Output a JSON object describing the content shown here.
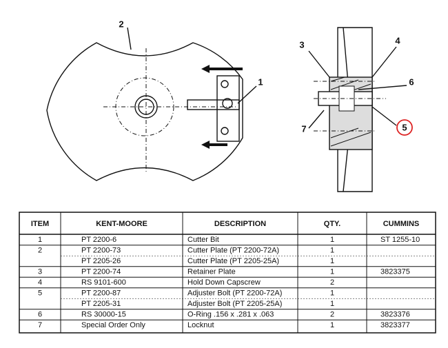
{
  "callouts": [
    "2",
    "1",
    "3",
    "4",
    "6",
    "5",
    "7"
  ],
  "table": {
    "header": [
      "ITEM",
      "KENT-MOORE",
      "DESCRIPTION",
      "QTY.",
      "CUMMINS"
    ],
    "rows": [
      {
        "item": "1",
        "kent_moore": "PT 2200-6",
        "description": "Cutter Bit",
        "qty": "1",
        "cummins": "ST 1255-10"
      },
      {
        "item": "2",
        "kent_moore": "PT 2200-73",
        "description": "Cutter Plate (PT 2200-72A)",
        "qty": "1"
      },
      {
        "kent_moore": "PT 2205-26",
        "description": "Cutter Plate (PT 2205-25A)",
        "qty": "1"
      },
      {
        "item": "3",
        "kent_moore": "PT 2200-74",
        "description": "Retainer Plate",
        "qty": "1",
        "cummins": "3823375"
      },
      {
        "item": "4",
        "kent_moore": "RS 9101-600",
        "description": "Hold Down Capscrew",
        "qty": "2"
      },
      {
        "item": "5",
        "kent_moore": "PT 2200-87",
        "description": "Adjuster Bolt (PT 2200-72A)",
        "qty": "1"
      },
      {
        "kent_moore": "PT 2205-31",
        "description": "Adjuster Bolt (PT 2205-25A)",
        "qty": "1"
      },
      {
        "item": "6",
        "kent_moore": "RS 30000-15",
        "description": "O-Ring .156 x .281 x .063",
        "qty": "2",
        "cummins": "3823376"
      },
      {
        "item": "7",
        "kent_moore": "Special Order Only",
        "description": "Locknut",
        "qty": "1",
        "cummins": "3823377"
      }
    ]
  }
}
